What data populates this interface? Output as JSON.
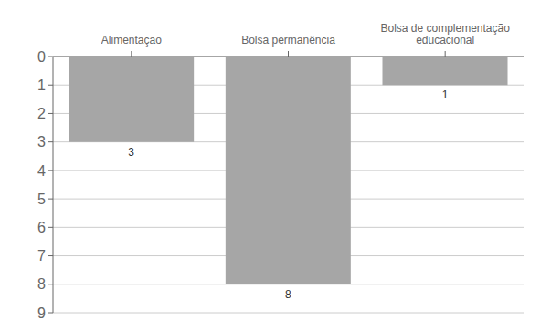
{
  "chart_data": {
    "type": "bar",
    "categories": [
      "Alimentação",
      "Bolsa permanência",
      "Bolsa de complementação\neducacional"
    ],
    "values": [
      3,
      8,
      1
    ],
    "color": "#a6a6a6",
    "ylim": [
      9,
      0
    ],
    "yticks": [
      0,
      1,
      2,
      3,
      4,
      5,
      6,
      7,
      8,
      9
    ],
    "data_labels": true,
    "grid": true
  }
}
